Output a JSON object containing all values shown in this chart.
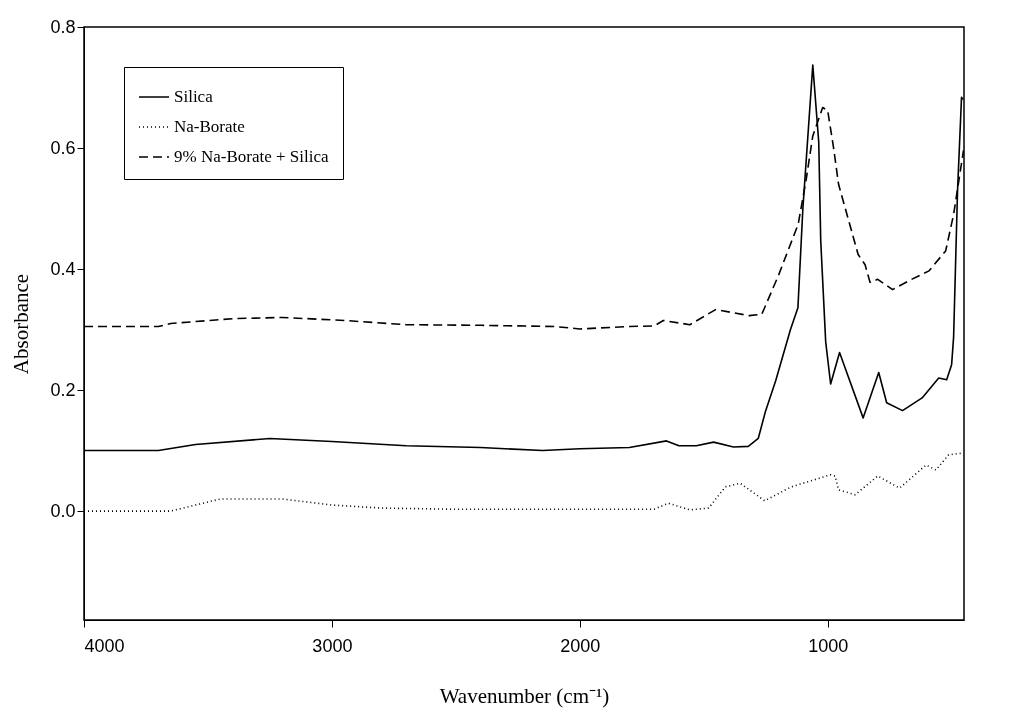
{
  "chart_data": {
    "type": "line",
    "xlabel": "Wavenumber (cm⁻¹)",
    "ylabel": "Absorbance",
    "xlim": [
      4000,
      450
    ],
    "xticks": [
      4000,
      3000,
      2000,
      1000
    ],
    "ylim": [
      -0.18,
      0.8
    ],
    "yticks": [
      {
        "value": 0.0,
        "label": "0.0"
      },
      {
        "value": 0.2,
        "label": "0.2"
      },
      {
        "value": 0.4,
        "label": "0.4"
      },
      {
        "value": 0.6,
        "label": "0.6"
      },
      {
        "value": 0.8,
        "label": "0.8"
      }
    ],
    "grid": false,
    "legend": "top left",
    "marker": "none",
    "series": [
      {
        "name": "Silica",
        "color": "#000000",
        "line_style": "solid",
        "x": [
          4000,
          3700,
          3550,
          3250,
          3000,
          2700,
          2400,
          2150,
          2000,
          1800,
          1650,
          1600,
          1530,
          1460,
          1380,
          1320,
          1280,
          1250,
          1210,
          1150,
          1120,
          1100,
          1060,
          1036,
          1028,
          1008,
          988,
          952,
          857,
          794,
          762,
          698,
          619,
          552,
          520,
          500,
          492,
          476,
          460,
          455
        ],
        "values": [
          0.1,
          0.1,
          0.11,
          0.12,
          0.115,
          0.108,
          0.105,
          0.1,
          0.103,
          0.105,
          0.116,
          0.108,
          0.108,
          0.114,
          0.106,
          0.107,
          0.12,
          0.166,
          0.215,
          0.3,
          0.336,
          0.5,
          0.737,
          0.61,
          0.447,
          0.28,
          0.21,
          0.262,
          0.154,
          0.229,
          0.179,
          0.166,
          0.187,
          0.22,
          0.217,
          0.242,
          0.287,
          0.53,
          0.684,
          0.68
        ]
      },
      {
        "name": "Na-Borate",
        "color": "#000000",
        "line_style": "dotted",
        "x": [
          4000,
          3650,
          3450,
          3200,
          3000,
          2800,
          2500,
          1700,
          1643,
          1556,
          1480,
          1413,
          1353,
          1254,
          1147,
          988,
          970,
          956,
          889,
          798,
          710,
          603,
          563,
          512,
          452
        ],
        "values": [
          0.0,
          0.0,
          0.02,
          0.02,
          0.01,
          0.005,
          0.003,
          0.003,
          0.013,
          0.002,
          0.005,
          0.04,
          0.046,
          0.017,
          0.04,
          0.06,
          0.058,
          0.035,
          0.027,
          0.058,
          0.038,
          0.076,
          0.068,
          0.093,
          0.096
        ]
      },
      {
        "name": "9% Na-Borate + Silica",
        "color": "#000000",
        "line_style": "dashed",
        "x": [
          4000,
          3700,
          3650,
          3400,
          3200,
          2950,
          2700,
          2400,
          2100,
          2000,
          1800,
          1700,
          1663,
          1556,
          1452,
          1317,
          1266,
          1198,
          1119,
          1087,
          1060,
          1020,
          1000,
          976,
          956,
          877,
          849,
          829,
          798,
          738,
          671,
          591,
          524,
          492,
          452
        ],
        "values": [
          0.305,
          0.305,
          0.31,
          0.318,
          0.32,
          0.315,
          0.308,
          0.307,
          0.305,
          0.301,
          0.305,
          0.306,
          0.315,
          0.308,
          0.333,
          0.323,
          0.325,
          0.39,
          0.474,
          0.547,
          0.62,
          0.667,
          0.662,
          0.6,
          0.54,
          0.424,
          0.407,
          0.378,
          0.383,
          0.366,
          0.381,
          0.397,
          0.43,
          0.49,
          0.596
        ]
      }
    ]
  }
}
